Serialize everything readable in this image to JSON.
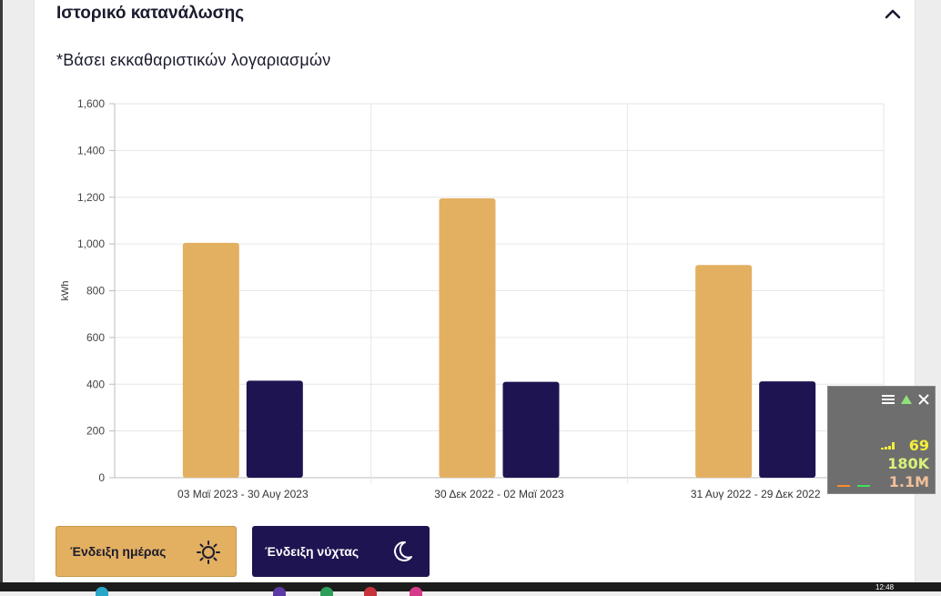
{
  "section": {
    "title": "Ιστορικό κατανάλωσης",
    "subtitle": "*Βάσει εκκαθαριστικών λογαριασμών"
  },
  "chart_data": {
    "type": "bar",
    "categories": [
      "03 Μαϊ 2023 - 30 Αυγ 2023",
      "30 Δεκ 2022 - 02 Μαϊ 2023",
      "31 Αυγ 2022 - 29 Δεκ 2022"
    ],
    "series": [
      {
        "name": "Ένδειξη ημέρας",
        "values": [
          1005,
          1195,
          910
        ],
        "color": "#e3b061"
      },
      {
        "name": "Ένδειξη νύχτας",
        "values": [
          415,
          410,
          412
        ],
        "color": "#1f1452"
      }
    ],
    "ylabel": "kWh",
    "ylim": [
      0,
      1600
    ],
    "yticks": [
      0,
      200,
      400,
      600,
      800,
      1000,
      1200,
      1400,
      1600
    ],
    "ytick_labels": [
      "0",
      "200",
      "400",
      "600",
      "800",
      "1,000",
      "1,200",
      "1,400",
      "1,600"
    ],
    "grid": true,
    "legend": "bottom-left"
  },
  "legend": {
    "day_label": "Ένδειξη ημέρας",
    "night_label": "Ένδειξη νύχτας",
    "day_icon": "sun-icon",
    "night_icon": "moon-icon"
  },
  "overlay": {
    "line1": "69",
    "line2": "180K",
    "line3": "1.1M",
    "colors": {
      "line1": "#f5ef3a",
      "line2": "#d8f27a",
      "line3": "#f2c09a"
    }
  },
  "taskbar": {
    "clock": "12:48"
  }
}
